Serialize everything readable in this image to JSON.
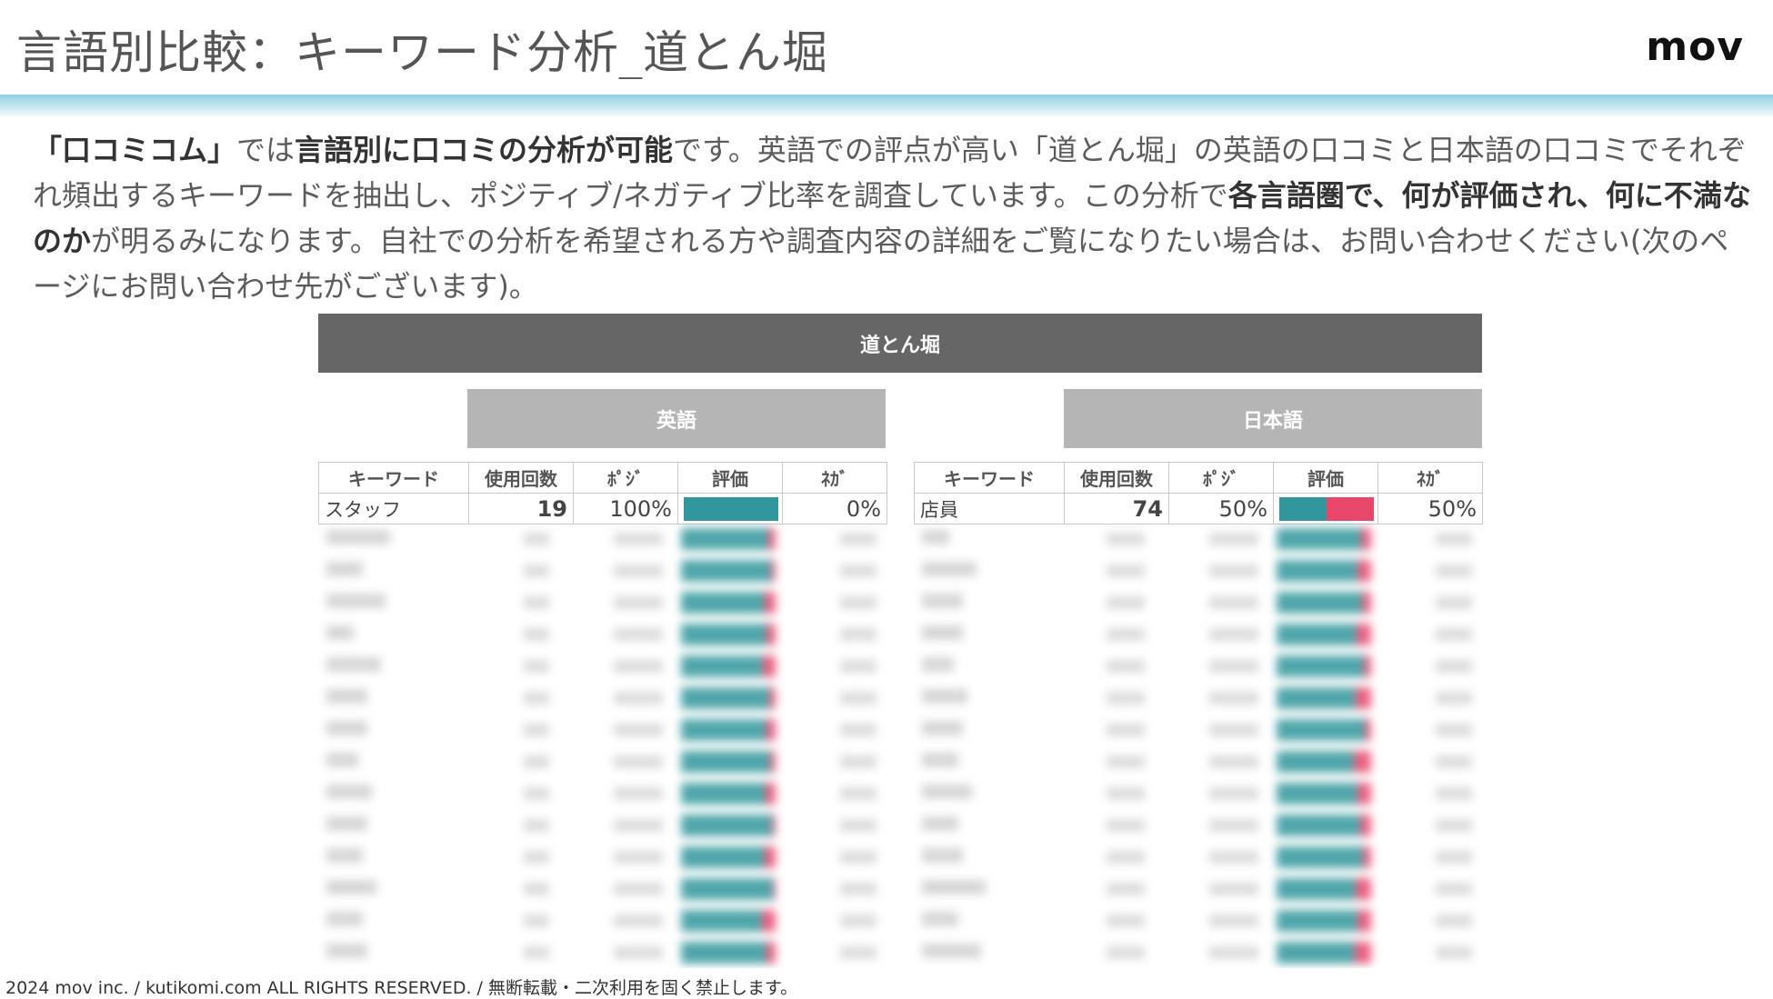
{
  "header": {
    "title": "言語別比較：キーワード分析_道とん堀",
    "logo": "mov"
  },
  "lead": {
    "segments": [
      {
        "text": "「口コミコム」",
        "bold": true
      },
      {
        "text": "では",
        "bold": false
      },
      {
        "text": "言語別に口コミの分析が可能",
        "bold": true
      },
      {
        "text": "です。英語での評点が高い「道とん堀」の英語の口コミと日本語の口コミでそれぞれ頻出するキーワードを抽出し、ポジティブ/ネガティブ比率を調査しています。この分析で",
        "bold": false
      },
      {
        "text": "各言語圏で、何が評価され、何に不満なのか",
        "bold": true
      },
      {
        "text": "が明るみになります。自社での分析を希望される方や調査内容の詳細をご覧になりたい場合は、お問い合わせください(次のページにお問い合わせ先がございます)。",
        "bold": false
      }
    ]
  },
  "table": {
    "banner": "道とん堀",
    "columns": [
      "キーワード",
      "使用回数",
      "ﾎﾟｼﾞ",
      "評価",
      "ﾈｶﾞ"
    ],
    "english": {
      "label": "英語",
      "visible_row": {
        "keyword": "スタッフ",
        "count": "19",
        "positive": "100%",
        "negative": "0%",
        "positive_ratio": 1.0
      }
    },
    "japanese": {
      "label": "日本語",
      "visible_row": {
        "keyword": "店員",
        "count": "74",
        "positive": "50%",
        "negative": "50%",
        "positive_ratio": 0.5
      }
    }
  },
  "colors": {
    "positive": "#31979c",
    "negative": "#e9466c",
    "banner": "#666666",
    "lang_header": "#b5b5b5"
  },
  "footer": {
    "copyright": "2024 mov inc. / kutikomi.com ALL RIGHTS RESERVED. / 無断転載・二次利用を固く禁止します。"
  }
}
